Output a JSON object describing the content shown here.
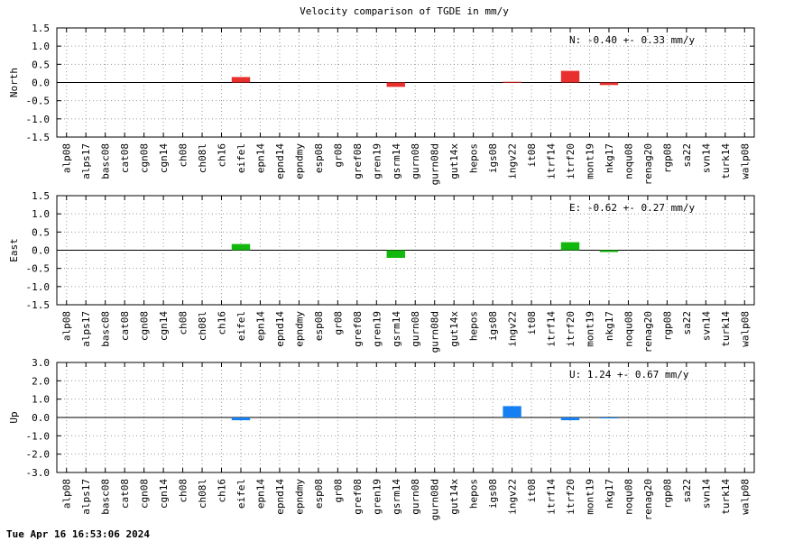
{
  "chart_data": [
    {
      "type": "bar",
      "title": "Velocity comparison of TGDE in mm/y",
      "ylabel": "North",
      "ylim": [
        -1.5,
        1.5
      ],
      "yticks": [
        "1.5",
        "1.0",
        "0.5",
        "0.0",
        "-0.5",
        "-1.0",
        "-1.5"
      ],
      "grid": true,
      "color": "#e8302f",
      "stat_text": "N:  -0.40 +-  0.33 mm/y",
      "categories": [
        "alp08",
        "alps17",
        "basc08",
        "cat08",
        "cgn08",
        "cgn14",
        "ch08",
        "ch08l",
        "ch16",
        "eifel",
        "epn14",
        "epnd14",
        "epndmy",
        "esp08",
        "gr08",
        "gref08",
        "gren19",
        "gsrm14",
        "gurn08",
        "gurn08d",
        "gut14x",
        "hepos",
        "igs08",
        "ingv22",
        "it08",
        "itrf14",
        "itrf20",
        "mont19",
        "nkg17",
        "noqu08",
        "renag20",
        "rgp08",
        "sa22",
        "svn14",
        "turk14",
        "walp08"
      ],
      "values": [
        null,
        null,
        null,
        null,
        null,
        null,
        null,
        null,
        null,
        0.15,
        null,
        null,
        null,
        null,
        null,
        null,
        null,
        -0.12,
        null,
        null,
        null,
        null,
        null,
        0.02,
        null,
        null,
        0.32,
        null,
        -0.07,
        null,
        null,
        null,
        null,
        null,
        null,
        null
      ]
    },
    {
      "type": "bar",
      "ylabel": "East",
      "ylim": [
        -1.5,
        1.5
      ],
      "yticks": [
        "1.5",
        "1.0",
        "0.5",
        "0.0",
        "-0.5",
        "-1.0",
        "-1.5"
      ],
      "grid": true,
      "color": "#13b80f",
      "stat_text": "E:  -0.62 +-  0.27 mm/y",
      "categories": [
        "alp08",
        "alps17",
        "basc08",
        "cat08",
        "cgn08",
        "cgn14",
        "ch08",
        "ch08l",
        "ch16",
        "eifel",
        "epn14",
        "epnd14",
        "epndmy",
        "esp08",
        "gr08",
        "gref08",
        "gren19",
        "gsrm14",
        "gurn08",
        "gurn08d",
        "gut14x",
        "hepos",
        "igs08",
        "ingv22",
        "it08",
        "itrf14",
        "itrf20",
        "mont19",
        "nkg17",
        "noqu08",
        "renag20",
        "rgp08",
        "sa22",
        "svn14",
        "turk14",
        "walp08"
      ],
      "values": [
        null,
        null,
        null,
        null,
        null,
        null,
        null,
        null,
        null,
        0.17,
        null,
        null,
        null,
        null,
        null,
        null,
        null,
        -0.21,
        null,
        null,
        null,
        null,
        null,
        null,
        null,
        null,
        0.22,
        null,
        -0.05,
        null,
        null,
        null,
        null,
        null,
        null,
        null
      ]
    },
    {
      "type": "bar",
      "ylabel": "Up",
      "ylim": [
        -3.0,
        3.0
      ],
      "yticks": [
        "3.0",
        "2.0",
        "1.0",
        "0.0",
        "-1.0",
        "-2.0",
        "-3.0"
      ],
      "grid": true,
      "color": "#1680f2",
      "stat_text": "U:   1.24 +-  0.67 mm/y",
      "categories": [
        "alp08",
        "alps17",
        "basc08",
        "cat08",
        "cgn08",
        "cgn14",
        "ch08",
        "ch08l",
        "ch16",
        "eifel",
        "epn14",
        "epnd14",
        "epndmy",
        "esp08",
        "gr08",
        "gref08",
        "gren19",
        "gsrm14",
        "gurn08",
        "gurn08d",
        "gut14x",
        "hepos",
        "igs08",
        "ingv22",
        "it08",
        "itrf14",
        "itrf20",
        "mont19",
        "nkg17",
        "noqu08",
        "renag20",
        "rgp08",
        "sa22",
        "svn14",
        "turk14",
        "walp08"
      ],
      "values": [
        null,
        null,
        null,
        null,
        null,
        null,
        null,
        null,
        null,
        -0.15,
        null,
        null,
        null,
        null,
        null,
        null,
        null,
        null,
        null,
        null,
        null,
        null,
        null,
        0.62,
        null,
        null,
        -0.15,
        null,
        -0.05,
        null,
        null,
        null,
        null,
        null,
        null,
        null
      ]
    }
  ],
  "footer": {
    "timestamp": "Tue Apr 16 16:53:06 2024"
  }
}
